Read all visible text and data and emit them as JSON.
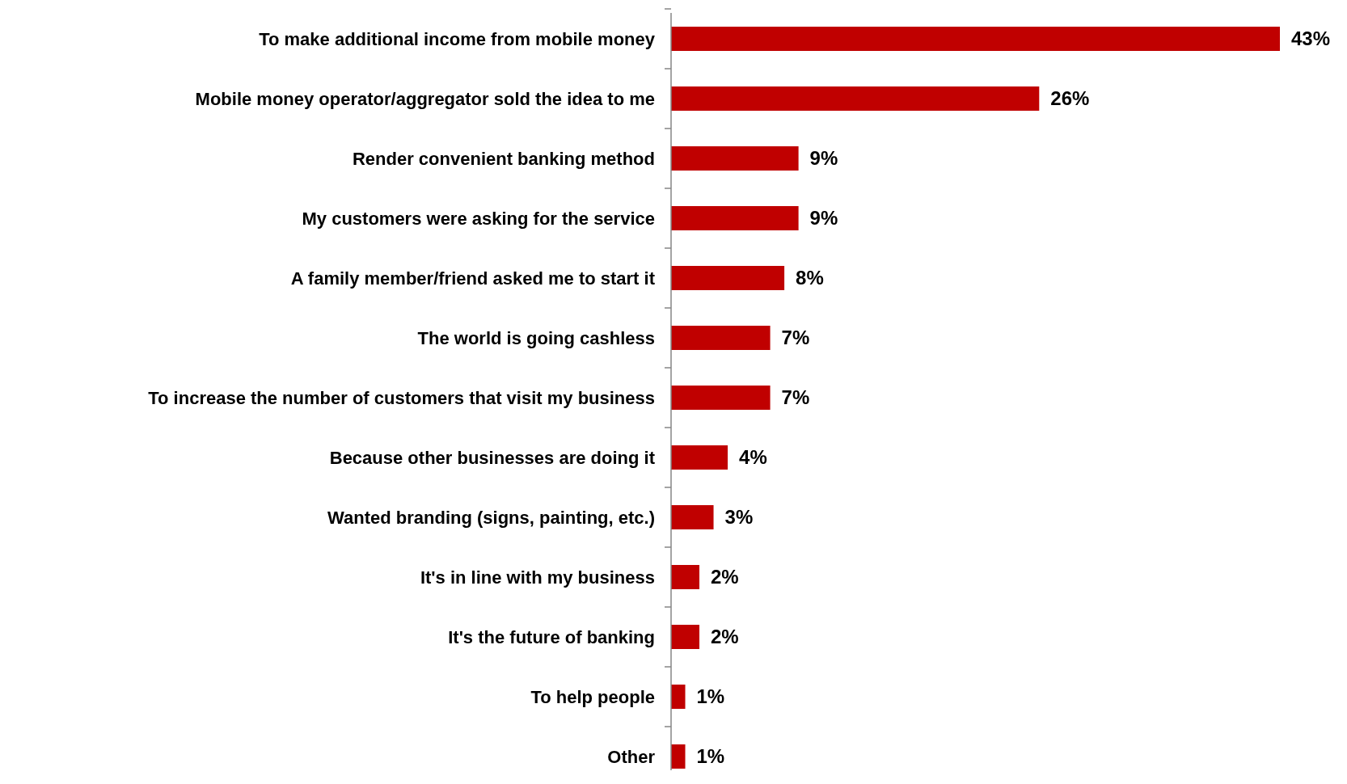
{
  "chart_data": {
    "type": "bar",
    "orientation": "horizontal",
    "categories": [
      "To make additional income from mobile money",
      "Mobile money operator/aggregator sold the idea to me",
      "Render convenient banking method",
      "My customers were asking for the service",
      "A family member/friend asked me to start it",
      "The world is going cashless",
      "To increase the number of customers that visit my business",
      "Because other businesses are doing it",
      "Wanted branding (signs, painting, etc.)",
      "It's in line with my business",
      "It's the future of banking",
      "To help people",
      "Other"
    ],
    "series": [
      {
        "color": "#c00000",
        "values": [
          43,
          26,
          9,
          9,
          8,
          7,
          7,
          4,
          3,
          2,
          2,
          1,
          1
        ],
        "value_labels": [
          "43%",
          "26%",
          "9%",
          "9%",
          "8%",
          "7%",
          "7%",
          "4%",
          "3%",
          "2%",
          "2%",
          "1%",
          "1%"
        ]
      }
    ]
  }
}
